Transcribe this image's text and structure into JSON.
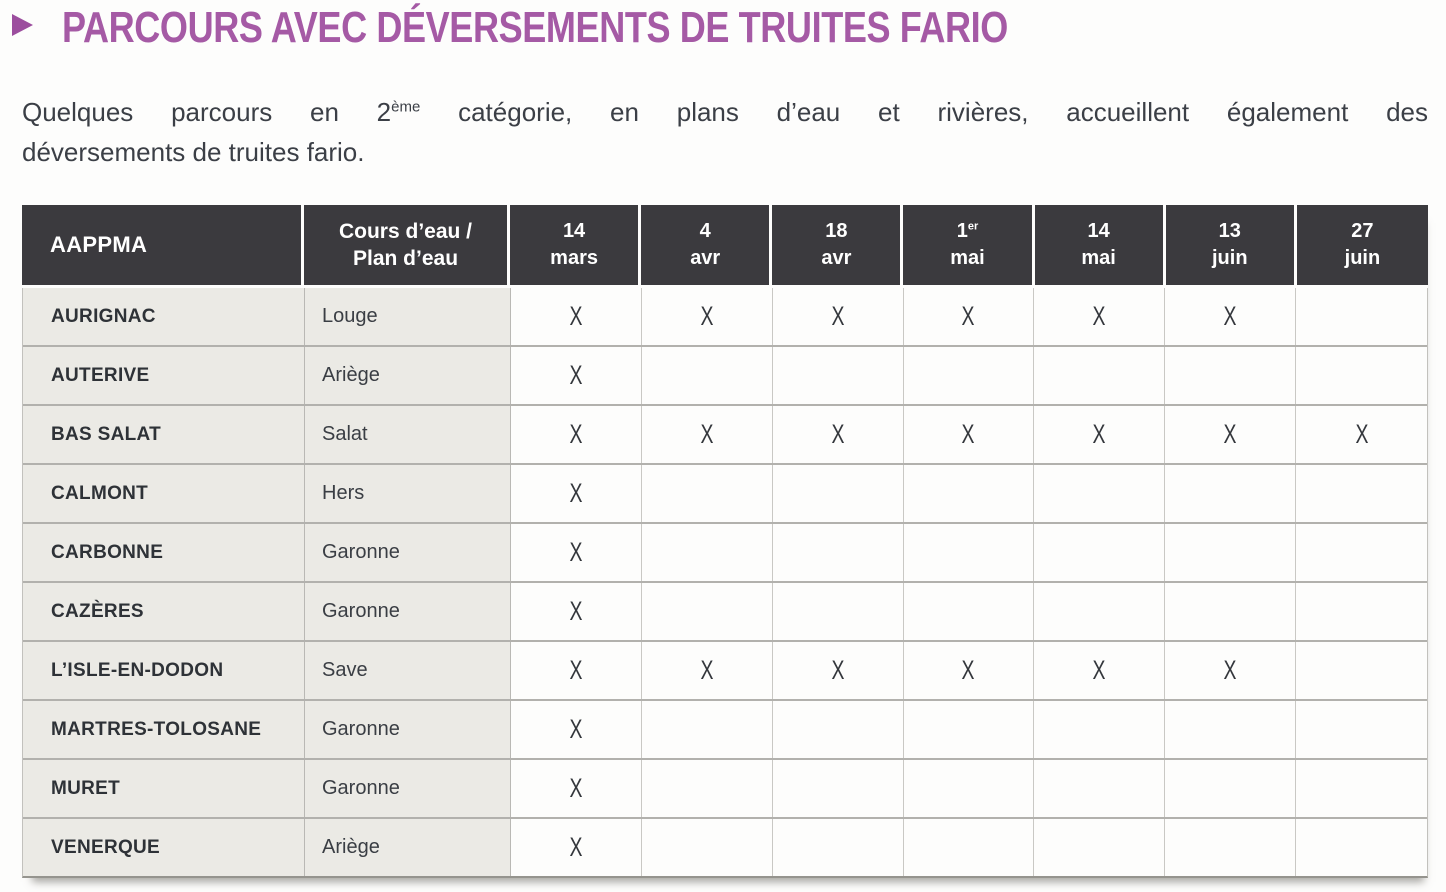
{
  "header": {
    "title": "PARCOURS AVEC DÉVERSEMENTS DE TRUITES FARIO",
    "bullet_icon": "triangle-right-icon",
    "accent_color": "#a55aa5"
  },
  "intro": {
    "line1_part1": "Quelques parcours en 2",
    "line1_sup": "ème",
    "line1_part2": " catégorie, en plans d’eau et rivières, accueillent également des",
    "line2": "déversements de truites fario."
  },
  "table": {
    "col1_header": "AAPPMA",
    "col2_header_line1": "Cours d’eau /",
    "col2_header_line2": "Plan d’eau",
    "header_bg": "#3b3a3e",
    "label_bg": "#ebeae5",
    "mark_symbol": "X",
    "date_columns": [
      {
        "day": "14",
        "sup": "",
        "month": "mars"
      },
      {
        "day": "4",
        "sup": "",
        "month": "avr"
      },
      {
        "day": "18",
        "sup": "",
        "month": "avr"
      },
      {
        "day": "1",
        "sup": "er",
        "month": "mai"
      },
      {
        "day": "14",
        "sup": "",
        "month": "mai"
      },
      {
        "day": "13",
        "sup": "",
        "month": "juin"
      },
      {
        "day": "27",
        "sup": "",
        "month": "juin"
      }
    ],
    "rows": [
      {
        "aappma": "AURIGNAC",
        "cours": "Louge",
        "marks": [
          "X",
          "X",
          "X",
          "X",
          "X",
          "X",
          ""
        ]
      },
      {
        "aappma": "AUTERIVE",
        "cours": "Ariège",
        "marks": [
          "X",
          "",
          "",
          "",
          "",
          "",
          ""
        ]
      },
      {
        "aappma": "BAS SALAT",
        "cours": "Salat",
        "marks": [
          "X",
          "X",
          "X",
          "X",
          "X",
          "X",
          "X"
        ]
      },
      {
        "aappma": "CALMONT",
        "cours": "Hers",
        "marks": [
          "X",
          "",
          "",
          "",
          "",
          "",
          ""
        ]
      },
      {
        "aappma": "CARBONNE",
        "cours": "Garonne",
        "marks": [
          "X",
          "",
          "",
          "",
          "",
          "",
          ""
        ]
      },
      {
        "aappma": "CAZÈRES",
        "cours": "Garonne",
        "marks": [
          "X",
          "",
          "",
          "",
          "",
          "",
          ""
        ]
      },
      {
        "aappma": "L’ISLE-EN-DODON",
        "cours": "Save",
        "marks": [
          "X",
          "X",
          "X",
          "X",
          "X",
          "X",
          ""
        ]
      },
      {
        "aappma": "MARTRES-TOLOSANE",
        "cours": "Garonne",
        "marks": [
          "X",
          "",
          "",
          "",
          "",
          "",
          ""
        ]
      },
      {
        "aappma": "MURET",
        "cours": "Garonne",
        "marks": [
          "X",
          "",
          "",
          "",
          "",
          "",
          ""
        ]
      },
      {
        "aappma": "VENERQUE",
        "cours": "Ariège",
        "marks": [
          "X",
          "",
          "",
          "",
          "",
          "",
          ""
        ]
      }
    ]
  }
}
